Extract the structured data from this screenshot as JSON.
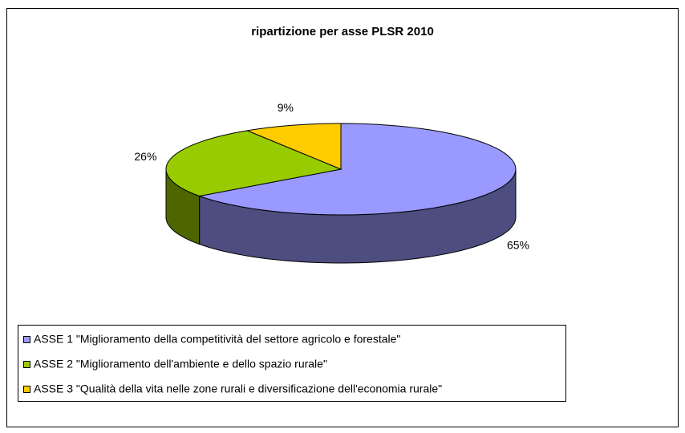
{
  "chart_data": {
    "type": "pie",
    "title": "ripartizione per asse PLSR 2010",
    "categories": [
      "ASSE 1 \"Miglioramento della competitività del settore agricolo e forestale\"",
      "ASSE 2 \"Miglioramento dell'ambiente e dello spazio rurale\"",
      "ASSE 3 \"Qualità della vita nelle zone rurali e diversificazione dell'economia rurale\""
    ],
    "values": [
      65,
      26,
      9
    ],
    "value_labels": [
      "65%",
      "26%",
      "9%"
    ],
    "colors": [
      "#9999ff",
      "#99cc00",
      "#ffcc00"
    ]
  }
}
